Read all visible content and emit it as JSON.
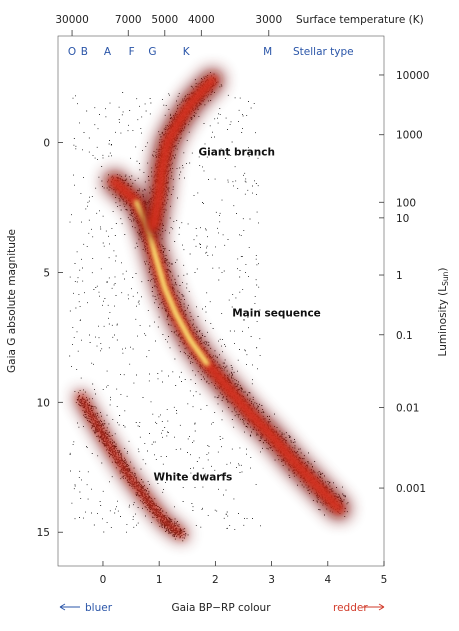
{
  "chart_data": {
    "type": "scatter",
    "title": "",
    "xlabel": "Gaia BP−RP colour",
    "ylabel": "Gaia G absolute magnitude",
    "xlim": [
      -0.8,
      5.0
    ],
    "ylim": [
      16.3,
      -4.1
    ],
    "x_ticks": [
      0,
      1,
      2,
      3,
      4,
      5
    ],
    "y_ticks": [
      0,
      5,
      10,
      15
    ],
    "top_axis": {
      "label": "Surface temperature (K)",
      "ticks": [
        {
          "x": -0.55,
          "label": "30000"
        },
        {
          "x": 0.45,
          "label": "7000"
        },
        {
          "x": 1.1,
          "label": "5000"
        },
        {
          "x": 1.75,
          "label": "4000"
        },
        {
          "x": 2.95,
          "label": "3000"
        }
      ],
      "spectral_label": "Stellar type",
      "spectral_types": [
        {
          "x": -0.55,
          "label": "O"
        },
        {
          "x": -0.33,
          "label": "B"
        },
        {
          "x": 0.08,
          "label": "A"
        },
        {
          "x": 0.51,
          "label": "F"
        },
        {
          "x": 0.88,
          "label": "G"
        },
        {
          "x": 1.48,
          "label": "K"
        },
        {
          "x": 2.93,
          "label": "M"
        }
      ]
    },
    "right_axis": {
      "label": "Luminosity (L",
      "label_sub": "Sun",
      "label_end": ")",
      "ticks": [
        {
          "mag": -2.6,
          "label": "10000"
        },
        {
          "mag": -0.3,
          "label": "1000"
        },
        {
          "mag": 2.3,
          "label": "100"
        },
        {
          "mag": 2.9,
          "label": "10"
        },
        {
          "mag": 5.1,
          "label": "1"
        },
        {
          "mag": 7.4,
          "label": "0.1"
        },
        {
          "mag": 10.2,
          "label": "0.01"
        },
        {
          "mag": 13.3,
          "label": "0.001"
        }
      ]
    },
    "regions": [
      {
        "name": "Main sequence",
        "points": [
          [
            0.2,
            1.5
          ],
          [
            0.6,
            2.3
          ],
          [
            0.8,
            3.3
          ],
          [
            0.95,
            4.5
          ],
          [
            1.1,
            5.6
          ],
          [
            1.3,
            6.6
          ],
          [
            1.55,
            7.6
          ],
          [
            1.85,
            8.5
          ],
          [
            2.2,
            9.4
          ],
          [
            2.6,
            10.4
          ],
          [
            3.0,
            11.3
          ],
          [
            3.4,
            12.3
          ],
          [
            3.8,
            13.2
          ],
          [
            4.2,
            14.1
          ]
        ]
      },
      {
        "name": "Giant branch",
        "points": [
          [
            0.9,
            3.2
          ],
          [
            1.0,
            2.0
          ],
          [
            1.05,
            1.0
          ],
          [
            1.15,
            0.0
          ],
          [
            1.35,
            -0.8
          ],
          [
            1.6,
            -1.6
          ],
          [
            1.95,
            -2.4
          ]
        ]
      },
      {
        "name": "White dwarfs",
        "points": [
          [
            -0.4,
            9.8
          ],
          [
            -0.1,
            10.9
          ],
          [
            0.15,
            11.8
          ],
          [
            0.45,
            12.8
          ],
          [
            0.8,
            13.8
          ],
          [
            1.1,
            14.6
          ],
          [
            1.4,
            15.1
          ]
        ]
      }
    ],
    "annotations": [
      {
        "text": "Giant branch",
        "x": 1.7,
        "y": 0.5
      },
      {
        "text": "Main sequence",
        "x": 2.3,
        "y": 6.7
      },
      {
        "text": "White dwarfs",
        "x": 0.9,
        "y": 13.0
      }
    ],
    "direction_labels": {
      "left": "bluer",
      "right": "redder"
    },
    "colors": {
      "dense": "#fff27a",
      "mid": "#d8321d",
      "sparse": "#6e0d0d",
      "points": "#000000",
      "blue": "#2a55a8",
      "red": "#d23a2a"
    },
    "grid": false
  }
}
